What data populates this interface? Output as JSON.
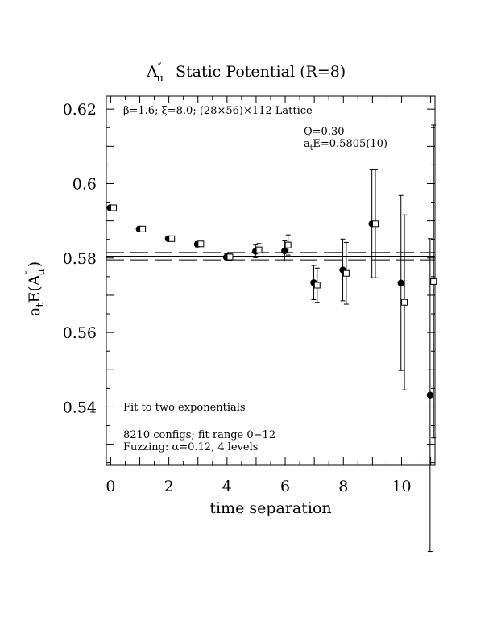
{
  "chart_data": {
    "type": "scatter",
    "title": {
      "symbol": "A",
      "prime": "″",
      "sub": "u",
      "text": "Static Potential (R=8)"
    },
    "xlabel": "time separation",
    "ylabel": {
      "prefix": "a",
      "prefix_sub": "t",
      "main": "E(A",
      "prime": "″",
      "sub": "u",
      "close": ")"
    },
    "xlim": [
      -0.15,
      11.15
    ],
    "ylim": [
      0.5245,
      0.6235
    ],
    "x_ticks": [
      "0",
      "2",
      "4",
      "6",
      "8",
      "10"
    ],
    "y_ticks": [
      "0.54",
      "0.56",
      "0.58",
      "0.6",
      "0.62"
    ],
    "annotations": {
      "lattice": "β=1.6; ξ=8.0; (28×56)×112 Lattice",
      "q_value": "Q=0.30",
      "energy": {
        "prefix": "a",
        "sub": "t",
        "rest": "E=0.5805(10)"
      },
      "fit": "Fit to two exponentials",
      "configs": "8210 configs; fit range 0−12",
      "fuzzing": "Fuzzing: α=0.12, 4 levels"
    },
    "fit": {
      "center": 0.5805,
      "upper": 0.5815,
      "lower": 0.5795
    },
    "series": [
      {
        "marker": "filled-circle",
        "points": [
          {
            "x": 0,
            "y": 0.5935,
            "err": 0.0003
          },
          {
            "x": 1,
            "y": 0.5878,
            "err": 0.0004
          },
          {
            "x": 2,
            "y": 0.5852,
            "err": 0.0005
          },
          {
            "x": 3,
            "y": 0.5837,
            "err": 0.0007
          },
          {
            "x": 4,
            "y": 0.5802,
            "err": 0.001
          },
          {
            "x": 5,
            "y": 0.5818,
            "err": 0.0017
          },
          {
            "x": 6,
            "y": 0.5819,
            "err": 0.0027
          },
          {
            "x": 7,
            "y": 0.5734,
            "err": 0.0046
          },
          {
            "x": 8,
            "y": 0.5768,
            "err": 0.0083
          },
          {
            "x": 9,
            "y": 0.5892,
            "err": 0.0145
          },
          {
            "x": 10,
            "y": 0.5733,
            "err": 0.0235
          },
          {
            "x": 11,
            "y": 0.5432,
            "err": 0.042
          }
        ]
      },
      {
        "marker": "open-square",
        "points": [
          {
            "x": 0,
            "y": 0.5935,
            "err": 0.0003
          },
          {
            "x": 1,
            "y": 0.5878,
            "err": 0.0004
          },
          {
            "x": 2,
            "y": 0.5852,
            "err": 0.0005
          },
          {
            "x": 3,
            "y": 0.5838,
            "err": 0.0007
          },
          {
            "x": 4,
            "y": 0.5803,
            "err": 0.001
          },
          {
            "x": 5,
            "y": 0.5822,
            "err": 0.0017
          },
          {
            "x": 6,
            "y": 0.5835,
            "err": 0.0027
          },
          {
            "x": 7,
            "y": 0.5727,
            "err": 0.0046
          },
          {
            "x": 8,
            "y": 0.5759,
            "err": 0.0083
          },
          {
            "x": 9,
            "y": 0.5892,
            "err": 0.0145
          },
          {
            "x": 10,
            "y": 0.5681,
            "err": 0.0235
          },
          {
            "x": 11,
            "y": 0.5737,
            "err": 0.042
          }
        ]
      }
    ]
  }
}
